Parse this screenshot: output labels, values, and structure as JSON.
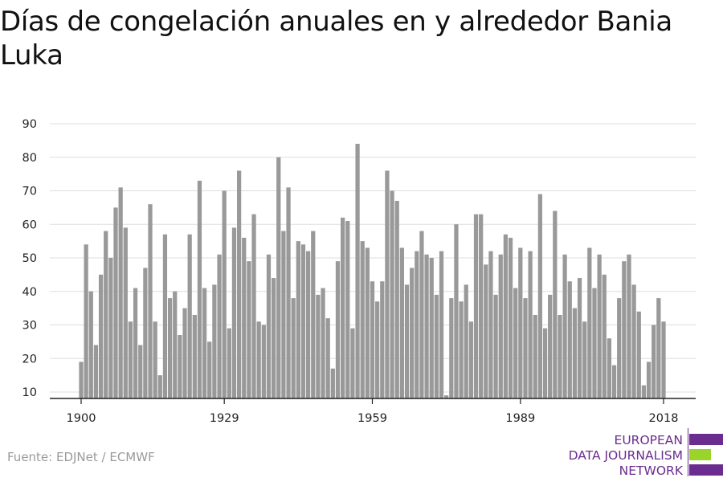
{
  "title": "Días de congelación anuales en y alrededor Bania Luka",
  "source": "Fuente: EDJNet / ECMWF",
  "logo": {
    "lines": [
      "EUROPEAN",
      "DATA JOURNALISM",
      "NETWORK"
    ],
    "colors": {
      "purple": "#6b2c8f",
      "green": "#9ad42a"
    }
  },
  "colors": {
    "bar": "#999999",
    "grid": "#dddddd",
    "axis": "#222222"
  },
  "chart_data": {
    "type": "bar",
    "title": "Días de congelación anuales en y alrededor Bania Luka",
    "xlabel": "",
    "ylabel": "",
    "x_ticks": [
      1900,
      1929,
      1959,
      1989,
      2018
    ],
    "y_ticks": [
      10,
      20,
      30,
      40,
      50,
      60,
      70,
      80,
      90
    ],
    "ylim": [
      8,
      90
    ],
    "grid": true,
    "categories": [
      1900,
      1901,
      1902,
      1903,
      1904,
      1905,
      1906,
      1907,
      1908,
      1909,
      1910,
      1911,
      1912,
      1913,
      1914,
      1915,
      1916,
      1917,
      1918,
      1919,
      1920,
      1921,
      1922,
      1923,
      1924,
      1925,
      1926,
      1927,
      1928,
      1929,
      1930,
      1931,
      1932,
      1933,
      1934,
      1935,
      1936,
      1937,
      1938,
      1939,
      1940,
      1941,
      1942,
      1943,
      1944,
      1945,
      1946,
      1947,
      1948,
      1949,
      1950,
      1951,
      1952,
      1953,
      1954,
      1955,
      1956,
      1957,
      1958,
      1959,
      1960,
      1961,
      1962,
      1963,
      1964,
      1965,
      1966,
      1967,
      1968,
      1969,
      1970,
      1971,
      1972,
      1973,
      1974,
      1975,
      1976,
      1977,
      1978,
      1979,
      1980,
      1981,
      1982,
      1983,
      1984,
      1985,
      1986,
      1987,
      1988,
      1989,
      1990,
      1991,
      1992,
      1993,
      1994,
      1995,
      1996,
      1997,
      1998,
      1999,
      2000,
      2001,
      2002,
      2003,
      2004,
      2005,
      2006,
      2007,
      2008,
      2009,
      2010,
      2011,
      2012,
      2013,
      2014,
      2015,
      2016,
      2017,
      2018
    ],
    "values": [
      19,
      54,
      40,
      24,
      45,
      58,
      50,
      65,
      71,
      59,
      31,
      41,
      24,
      47,
      66,
      31,
      15,
      57,
      38,
      40,
      27,
      35,
      57,
      33,
      73,
      41,
      25,
      42,
      51,
      70,
      29,
      59,
      76,
      56,
      49,
      63,
      31,
      30,
      51,
      44,
      80,
      58,
      71,
      38,
      55,
      54,
      52,
      58,
      39,
      41,
      32,
      17,
      49,
      62,
      61,
      29,
      84,
      55,
      53,
      43,
      37,
      43,
      76,
      70,
      67,
      53,
      42,
      47,
      52,
      58,
      51,
      50,
      39,
      52,
      9,
      38,
      60,
      37,
      42,
      31,
      63,
      63,
      48,
      52,
      39,
      51,
      57,
      56,
      41,
      53,
      38,
      52,
      33,
      69,
      29,
      39,
      64,
      33,
      51,
      43,
      35,
      44,
      31,
      53,
      41,
      51,
      45,
      26,
      18,
      38,
      49,
      51,
      42,
      34,
      12,
      19,
      30,
      38,
      31
    ]
  }
}
